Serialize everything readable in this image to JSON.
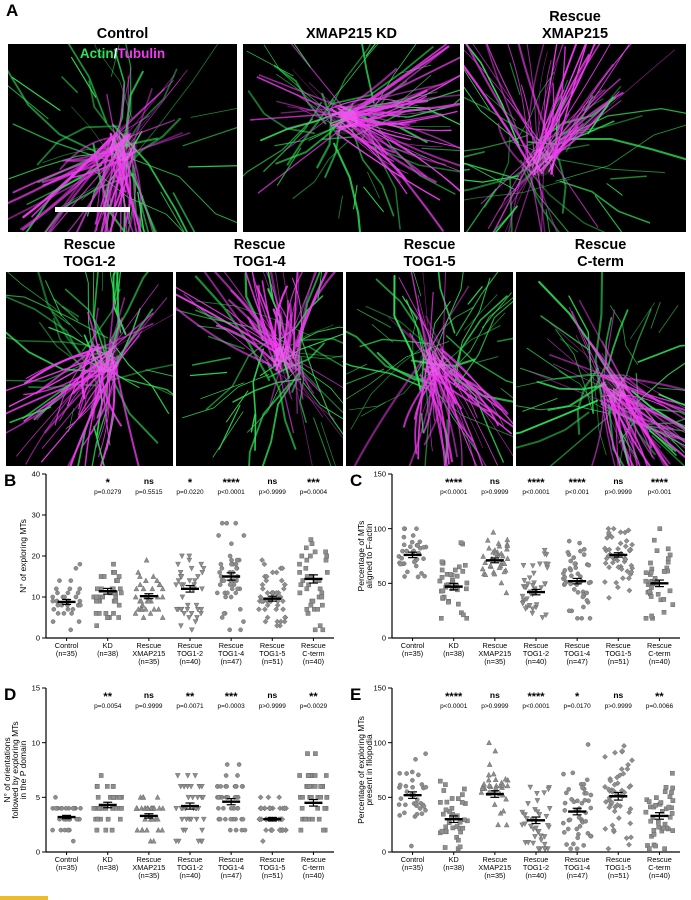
{
  "page": {
    "background": "#ffffff"
  },
  "panels": {
    "a": {
      "label": "A",
      "legend": {
        "actin": "Actin",
        "slash": "/",
        "tubulin": "Tubulin"
      },
      "colors": {
        "actin_green": "#2fe258",
        "tubulin_magenta": "#ee3cee"
      },
      "row1": [
        {
          "title": [
            "Control"
          ],
          "legend": true,
          "scalebar": true
        },
        {
          "title": [
            "XMAP215 KD"
          ]
        },
        {
          "title": [
            "Rescue",
            "XMAP215"
          ]
        }
      ],
      "row2": [
        {
          "title": [
            "Rescue",
            "TOG1-2"
          ]
        },
        {
          "title": [
            "Rescue",
            "TOG1-4"
          ]
        },
        {
          "title": [
            "Rescue",
            "TOG1-5"
          ]
        },
        {
          "title": [
            "Rescue",
            "C-term"
          ]
        }
      ]
    }
  },
  "chart_data": [
    {
      "id": "B",
      "type": "scatter",
      "ylabel_lines": [
        "N° of exploring MTs"
      ],
      "ylim": [
        0,
        40
      ],
      "yticks": [
        0,
        10,
        20,
        30,
        40
      ],
      "grid": false,
      "legend_position": "none",
      "round_values": true,
      "points_range": [
        2,
        28
      ],
      "categories": [
        [
          "Control",
          "(n=35)"
        ],
        [
          "KD",
          "(n=38)"
        ],
        [
          "Rescue",
          "XMAP215",
          "(n=35)"
        ],
        [
          "Rescue",
          "TOG1-2",
          "(n=40)"
        ],
        [
          "Rescue",
          "TOG1-4",
          "(n=47)"
        ],
        [
          "Rescue",
          "TOG1-5",
          "(n=51)"
        ],
        [
          "Rescue",
          "C-term",
          "(n=40)"
        ]
      ],
      "groups": [
        {
          "name": "Control",
          "n": 35,
          "mean": 8.8,
          "sem": 0.6,
          "marker": "circle"
        },
        {
          "name": "KD",
          "n": 38,
          "mean": 11.4,
          "sem": 0.7,
          "marker": "square",
          "sig": "*",
          "p": "p=0.0279"
        },
        {
          "name": "Rescue XMAP215",
          "n": 35,
          "mean": 10.2,
          "sem": 0.6,
          "marker": "triangle",
          "sig": "ns",
          "p": "p=0.5515"
        },
        {
          "name": "Rescue TOG1-2",
          "n": 40,
          "mean": 12.0,
          "sem": 0.8,
          "marker": "triangle-down",
          "sig": "*",
          "p": "p=0.0220"
        },
        {
          "name": "Rescue TOG1-4",
          "n": 47,
          "mean": 15.0,
          "sem": 0.9,
          "marker": "circle",
          "sig": "****",
          "p": "p<0.0001"
        },
        {
          "name": "Rescue TOG1-5",
          "n": 51,
          "mean": 9.6,
          "sem": 0.6,
          "marker": "diamond",
          "sig": "ns",
          "p": "p>0.9999"
        },
        {
          "name": "Rescue C-term",
          "n": 40,
          "mean": 14.4,
          "sem": 1.0,
          "marker": "square",
          "sig": "***",
          "p": "p=0.0004"
        }
      ]
    },
    {
      "id": "C",
      "type": "scatter",
      "ylabel_lines": [
        "Percentage of MTs",
        "aligned to F-actin"
      ],
      "ylim": [
        0,
        150
      ],
      "yticks": [
        0,
        50,
        100,
        150
      ],
      "grid": false,
      "legend_position": "none",
      "round_values": false,
      "points_range": [
        18,
        100
      ],
      "categories": [
        [
          "Control",
          "(n=35)"
        ],
        [
          "KD",
          "(n=38)"
        ],
        [
          "Rescue",
          "XMAP215",
          "(n=35)"
        ],
        [
          "Rescue",
          "TOG1-2",
          "(n=40)"
        ],
        [
          "Rescue",
          "TOG1-4",
          "(n=47)"
        ],
        [
          "Rescue",
          "TOG1-5",
          "(n=51)"
        ],
        [
          "Rescue",
          "C-term",
          "(n=40)"
        ]
      ],
      "groups": [
        {
          "name": "Control",
          "n": 35,
          "mean": 76,
          "sem": 2.5,
          "marker": "circle"
        },
        {
          "name": "KD",
          "n": 38,
          "mean": 47,
          "sem": 3.0,
          "marker": "square",
          "sig": "****",
          "p": "p<0.0001"
        },
        {
          "name": "Rescue XMAP215",
          "n": 35,
          "mean": 71,
          "sem": 2.2,
          "marker": "triangle",
          "sig": "ns",
          "p": "p>0.9999"
        },
        {
          "name": "Rescue TOG1-2",
          "n": 40,
          "mean": 42,
          "sem": 2.5,
          "marker": "triangle-down",
          "sig": "****",
          "p": "p<0.0001"
        },
        {
          "name": "Rescue TOG1-4",
          "n": 47,
          "mean": 52,
          "sem": 2.5,
          "marker": "circle",
          "sig": "****",
          "p": "p<0.001"
        },
        {
          "name": "Rescue TOG1-5",
          "n": 51,
          "mean": 76,
          "sem": 2.0,
          "marker": "diamond",
          "sig": "ns",
          "p": "p>0.9999"
        },
        {
          "name": "Rescue C-term",
          "n": 40,
          "mean": 50,
          "sem": 3.0,
          "marker": "square",
          "sig": "****",
          "p": "p<0.001"
        }
      ]
    },
    {
      "id": "D",
      "type": "scatter",
      "ylabel_lines": [
        "N° of orientations",
        "followed by exploring MTs",
        "in the P domain"
      ],
      "ylim": [
        0,
        15
      ],
      "yticks": [
        0,
        5,
        10,
        15
      ],
      "grid": false,
      "legend_position": "none",
      "round_values": true,
      "points_range": [
        1,
        10
      ],
      "categories": [
        [
          "Control",
          "(n=35)"
        ],
        [
          "KD",
          "(n=38)"
        ],
        [
          "Rescue",
          "XMAP215",
          "(n=35)"
        ],
        [
          "Rescue",
          "TOG1-2",
          "(n=40)"
        ],
        [
          "Rescue",
          "TOG1-4",
          "(n=47)"
        ],
        [
          "Rescue",
          "TOG1-5",
          "(n=51)"
        ],
        [
          "Rescue",
          "C-term",
          "(n=40)"
        ]
      ],
      "groups": [
        {
          "name": "Control",
          "n": 35,
          "mean": 3.2,
          "sem": 0.15,
          "marker": "circle"
        },
        {
          "name": "KD",
          "n": 38,
          "mean": 4.3,
          "sem": 0.25,
          "marker": "square",
          "sig": "**",
          "p": "p=0.0054"
        },
        {
          "name": "Rescue XMAP215",
          "n": 35,
          "mean": 3.3,
          "sem": 0.2,
          "marker": "triangle",
          "sig": "ns",
          "p": "p=0.9999"
        },
        {
          "name": "Rescue TOG1-2",
          "n": 40,
          "mean": 4.2,
          "sem": 0.28,
          "marker": "triangle-down",
          "sig": "**",
          "p": "p=0.0071"
        },
        {
          "name": "Rescue TOG1-4",
          "n": 47,
          "mean": 4.6,
          "sem": 0.28,
          "marker": "circle",
          "sig": "***",
          "p": "p=0.0003"
        },
        {
          "name": "Rescue TOG1-5",
          "n": 51,
          "mean": 3.0,
          "sem": 0.15,
          "marker": "diamond",
          "sig": "ns",
          "p": "p>0.9999"
        },
        {
          "name": "Rescue C-term",
          "n": 40,
          "mean": 4.5,
          "sem": 0.3,
          "marker": "square",
          "sig": "**",
          "p": "p=0.0029"
        }
      ]
    },
    {
      "id": "E",
      "type": "scatter",
      "ylabel_lines": [
        "Percentage of exploring MTs",
        "present in filopodia"
      ],
      "ylim": [
        0,
        150
      ],
      "yticks": [
        0,
        50,
        100,
        150
      ],
      "grid": false,
      "legend_position": "none",
      "round_values": false,
      "points_range": [
        3,
        100
      ],
      "categories": [
        [
          "Control",
          "(n=35)"
        ],
        [
          "KD",
          "(n=38)"
        ],
        [
          "Rescue",
          "XMAP215",
          "(n=35)"
        ],
        [
          "Rescue",
          "TOG1-2",
          "(n=40)"
        ],
        [
          "Rescue",
          "TOG1-4",
          "(n=47)"
        ],
        [
          "Rescue",
          "TOG1-5",
          "(n=51)"
        ],
        [
          "Rescue",
          "C-term",
          "(n=40)"
        ]
      ],
      "groups": [
        {
          "name": "Control",
          "n": 35,
          "mean": 52,
          "sem": 3.0,
          "marker": "circle"
        },
        {
          "name": "KD",
          "n": 38,
          "mean": 30,
          "sem": 3.0,
          "marker": "square",
          "sig": "****",
          "p": "p<0.0001"
        },
        {
          "name": "Rescue XMAP215",
          "n": 35,
          "mean": 53,
          "sem": 3.0,
          "marker": "triangle",
          "sig": "ns",
          "p": "p>0.9999"
        },
        {
          "name": "Rescue TOG1-2",
          "n": 40,
          "mean": 29,
          "sem": 3.0,
          "marker": "triangle-down",
          "sig": "****",
          "p": "p<0.0001"
        },
        {
          "name": "Rescue TOG1-4",
          "n": 47,
          "mean": 37,
          "sem": 3.0,
          "marker": "circle",
          "sig": "*",
          "p": "p=0.0170"
        },
        {
          "name": "Rescue TOG1-5",
          "n": 51,
          "mean": 51,
          "sem": 3.5,
          "marker": "diamond",
          "sig": "ns",
          "p": "p>0.9999"
        },
        {
          "name": "Rescue C-term",
          "n": 40,
          "mean": 33,
          "sem": 3.0,
          "marker": "square",
          "sig": "**",
          "p": "p=0.0066"
        }
      ]
    }
  ]
}
